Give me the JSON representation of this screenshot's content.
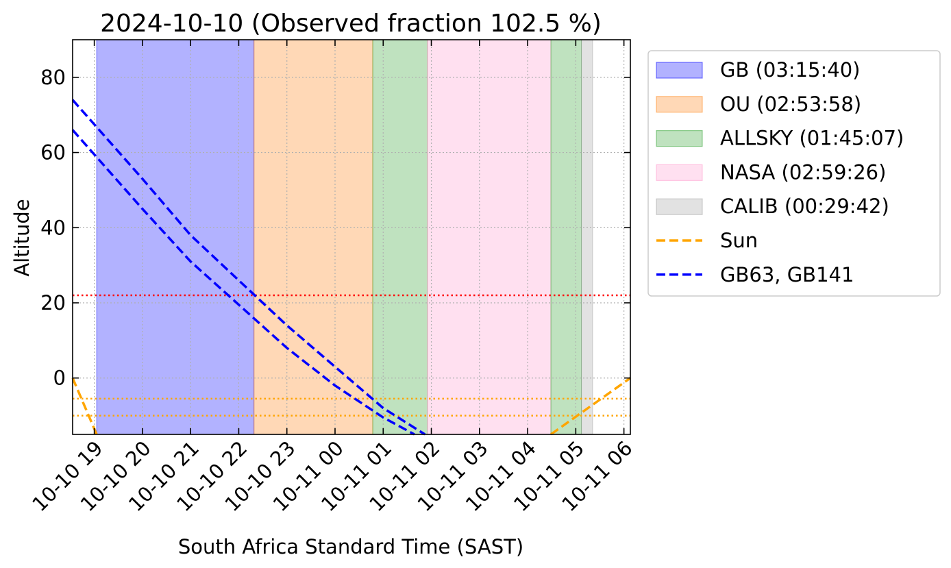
{
  "chart_data": {
    "type": "line",
    "title": "2024-10-10 (Observed fraction 102.5 %)",
    "xlabel": "South Africa Standard Time (SAST)",
    "ylabel": "Altitude",
    "xlim": [
      "2024-10-10 18:33",
      "2024-10-11 06:08"
    ],
    "ylim": [
      -15,
      90
    ],
    "x_ticks": [
      {
        "t": "2024-10-10 19:00",
        "label": "10-10 19"
      },
      {
        "t": "2024-10-10 20:00",
        "label": "10-10 20"
      },
      {
        "t": "2024-10-10 21:00",
        "label": "10-10 21"
      },
      {
        "t": "2024-10-10 22:00",
        "label": "10-10 22"
      },
      {
        "t": "2024-10-10 23:00",
        "label": "10-10 23"
      },
      {
        "t": "2024-10-11 00:00",
        "label": "10-11 00"
      },
      {
        "t": "2024-10-11 01:00",
        "label": "10-11 01"
      },
      {
        "t": "2024-10-11 02:00",
        "label": "10-11 02"
      },
      {
        "t": "2024-10-11 03:00",
        "label": "10-11 03"
      },
      {
        "t": "2024-10-11 04:00",
        "label": "10-11 04"
      },
      {
        "t": "2024-10-11 05:00",
        "label": "10-11 05"
      },
      {
        "t": "2024-10-11 06:00",
        "label": "10-11 06"
      }
    ],
    "y_ticks": [
      0,
      20,
      40,
      60,
      80
    ],
    "grid": true,
    "legend_position": "outside-right",
    "spans": [
      {
        "label": "GB (03:15:40)",
        "start": "2024-10-10 19:03",
        "end": "2024-10-10 22:19",
        "color": "#0000ff"
      },
      {
        "label": "OU (02:53:58)",
        "start": "2024-10-10 22:19",
        "end": "2024-10-11 00:47",
        "color": "#ff7f0e"
      },
      {
        "label": "ALLSKY (01:45:07)",
        "start": "2024-10-11 00:47",
        "end": "2024-10-11 01:55",
        "color": "#2ca02c"
      },
      {
        "label": "NASA (02:59:26)",
        "start": "2024-10-11 01:55",
        "end": "2024-10-11 04:29",
        "color": "#ff99cc"
      },
      {
        "label": "ALLSKY (01:45:07)",
        "start": "2024-10-11 04:29",
        "end": "2024-10-11 05:07",
        "color": "#2ca02c",
        "legend": false
      },
      {
        "label": "CALIB (00:29:42)",
        "start": "2024-10-11 05:07",
        "end": "2024-10-11 05:21",
        "color": "#a0a0a0"
      }
    ],
    "hlines": [
      {
        "y": 22,
        "color": "#ff0000"
      },
      {
        "y": -5.5,
        "color": "#ffa500"
      },
      {
        "y": -10,
        "color": "#ffa500"
      }
    ],
    "series": [
      {
        "name": "Sun",
        "color": "#ffa500",
        "legend": true,
        "points": [
          [
            "2024-10-10 18:33",
            0
          ],
          [
            "2024-10-10 19:03",
            -15
          ]
        ]
      },
      {
        "name": "Sun",
        "color": "#ffa500",
        "legend": false,
        "points": [
          [
            "2024-10-11 04:29",
            -15
          ],
          [
            "2024-10-11 06:08",
            0
          ]
        ]
      },
      {
        "name": "GB63, GB141",
        "color": "#0000ff",
        "legend": true,
        "points": [
          [
            "2024-10-10 18:33",
            74
          ],
          [
            "2024-10-10 20:00",
            53
          ],
          [
            "2024-10-10 21:00",
            38
          ],
          [
            "2024-10-10 22:00",
            26
          ],
          [
            "2024-10-10 23:00",
            14
          ],
          [
            "2024-10-11 00:00",
            3
          ],
          [
            "2024-10-11 01:00",
            -8
          ],
          [
            "2024-10-11 01:52",
            -15
          ]
        ]
      },
      {
        "name": "GB63, GB141",
        "color": "#0000ff",
        "legend": false,
        "points": [
          [
            "2024-10-10 18:33",
            66
          ],
          [
            "2024-10-10 20:00",
            45
          ],
          [
            "2024-10-10 21:00",
            31
          ],
          [
            "2024-10-10 22:00",
            19.5
          ],
          [
            "2024-10-10 23:00",
            8
          ],
          [
            "2024-10-11 00:00",
            -2
          ],
          [
            "2024-10-11 01:00",
            -10.5
          ],
          [
            "2024-10-11 01:39",
            -15
          ]
        ]
      }
    ]
  }
}
